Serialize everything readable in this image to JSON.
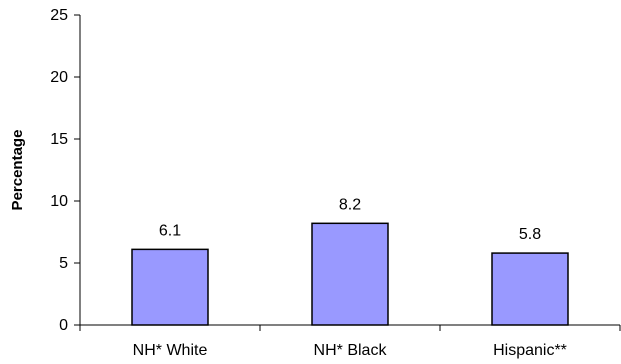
{
  "chart_data": {
    "type": "bar",
    "title": "",
    "xlabel": "",
    "ylabel": "Percentage",
    "categories": [
      "NH* White",
      "NH* Black",
      "Hispanic**"
    ],
    "values": [
      6.1,
      8.2,
      5.8
    ],
    "value_labels": [
      "6.1",
      "8.2",
      "5.8"
    ],
    "ylim": [
      0,
      25
    ],
    "yticks": [
      0,
      5,
      10,
      15,
      20,
      25
    ],
    "grid": false,
    "legend": "none",
    "bar_color": "#9999FF",
    "bar_edge_color": "#000000"
  }
}
